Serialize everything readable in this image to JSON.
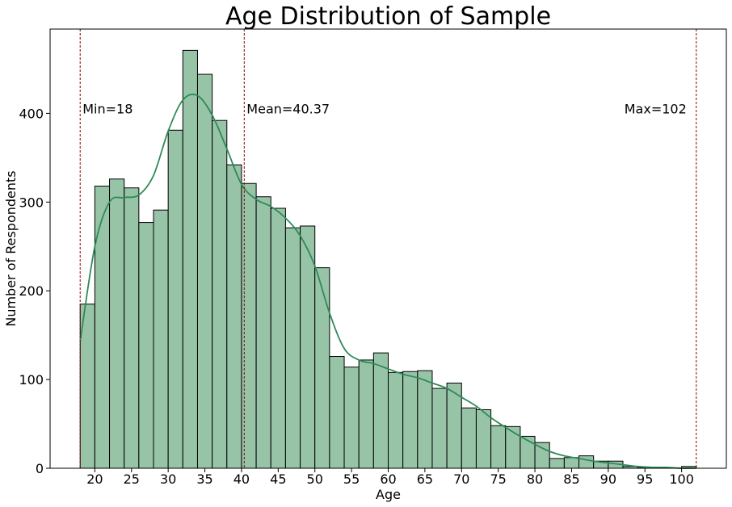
{
  "colors": {
    "bar_fill": "#97c3a7",
    "bar_stroke": "#000000",
    "kde_line": "#2e8b57",
    "ref_line": "#8b0000",
    "axis": "#000000"
  },
  "chart_data": {
    "type": "bar",
    "title": "Age Distribution of Sample",
    "xlabel": "Age",
    "ylabel": "Number of Respondents",
    "xlim": [
      13.9,
      106.1
    ],
    "ylim": [
      0,
      495
    ],
    "x_ticks": [
      20,
      25,
      30,
      35,
      40,
      45,
      50,
      55,
      60,
      65,
      70,
      75,
      80,
      85,
      90,
      95,
      100
    ],
    "y_ticks": [
      0,
      100,
      200,
      300,
      400
    ],
    "grid": false,
    "bin_start": 18,
    "bin_width": 2,
    "counts": [
      185,
      318,
      326,
      316,
      277,
      291,
      381,
      471,
      444,
      392,
      342,
      321,
      306,
      293,
      271,
      273,
      226,
      126,
      114,
      122,
      130,
      108,
      109,
      110,
      90,
      96,
      68,
      66,
      48,
      47,
      36,
      29,
      11,
      12,
      14,
      8,
      8,
      2,
      1,
      0,
      0,
      2
    ],
    "kde_curve": {
      "x": [
        18,
        20,
        22,
        24,
        26,
        28,
        30,
        32,
        34,
        36,
        38,
        40,
        42,
        44,
        46,
        48,
        50,
        52,
        54,
        56,
        58,
        60,
        62,
        64,
        66,
        68,
        70,
        72,
        74,
        76,
        78,
        80,
        82,
        84,
        86,
        88,
        90,
        92,
        94,
        96,
        98,
        100,
        102
      ],
      "y": [
        143,
        250,
        300,
        305,
        308,
        330,
        380,
        415,
        420,
        398,
        360,
        320,
        303,
        295,
        282,
        262,
        228,
        175,
        135,
        122,
        118,
        112,
        106,
        102,
        96,
        90,
        80,
        70,
        57,
        46,
        36,
        27,
        19,
        14,
        11,
        8,
        6,
        4,
        2,
        1,
        1,
        0,
        0
      ]
    },
    "reference_lines": [
      {
        "x": 18,
        "label": "Min=18"
      },
      {
        "x": 40.37,
        "label": "Mean=40.37"
      },
      {
        "x": 102,
        "label": "Max=102"
      }
    ],
    "annotation_y": 400
  }
}
